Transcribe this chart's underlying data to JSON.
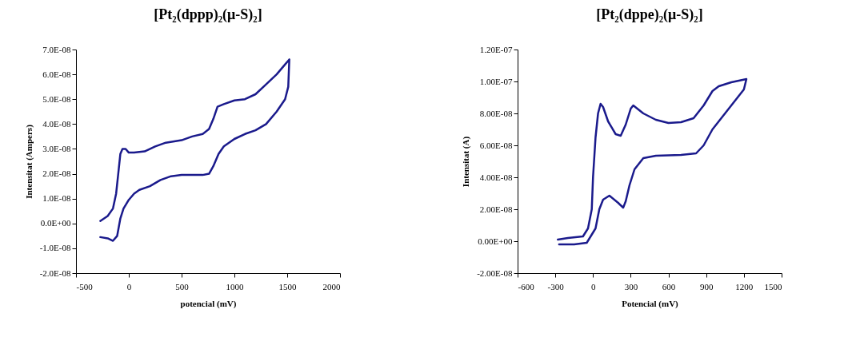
{
  "chart_data": [
    {
      "type": "line",
      "title": "[Pt₂(dppp)₂(μ-S)₂]",
      "xlabel": "potencial (mV)",
      "ylabel": "Intensitat (Ampers)",
      "xlim": [
        -500,
        2000
      ],
      "xticks": [
        -500,
        0,
        500,
        1000,
        1500,
        2000
      ],
      "ylim": [
        -2e-08,
        7e-08
      ],
      "yticks": [
        {
          "value": -2e-08,
          "label": "-2.0E-08"
        },
        {
          "value": -1e-08,
          "label": "-1.0E-08"
        },
        {
          "value": 0,
          "label": "0.0E+00"
        },
        {
          "value": 1e-08,
          "label": "1.0E-08"
        },
        {
          "value": 2e-08,
          "label": "2.0E-08"
        },
        {
          "value": 3e-08,
          "label": "3.0E-08"
        },
        {
          "value": 4e-08,
          "label": "4.0E-08"
        },
        {
          "value": 5e-08,
          "label": "5.0E-08"
        },
        {
          "value": 6e-08,
          "label": "6.0E-08"
        },
        {
          "value": 7e-08,
          "label": "7.0E-08"
        }
      ],
      "series": [
        {
          "color": "#1a1a8c",
          "x": [
            -270,
            -200,
            -150,
            -120,
            -100,
            -80,
            -60,
            -30,
            0,
            50,
            150,
            250,
            350,
            500,
            600,
            700,
            760,
            800,
            840,
            900,
            1000,
            1100,
            1200,
            1300,
            1400,
            1480,
            1520,
            1510,
            1480,
            1400,
            1300,
            1200,
            1100,
            1000,
            900,
            850,
            800,
            760,
            700,
            600,
            500,
            400,
            300,
            200,
            100,
            50,
            0,
            -50,
            -80,
            -110,
            -150,
            -200,
            -270
          ],
          "values": [
            1e-09,
            3e-09,
            6e-09,
            1.2e-08,
            2e-08,
            2.8e-08,
            3e-08,
            3e-08,
            2.85e-08,
            2.85e-08,
            2.9e-08,
            3.1e-08,
            3.25e-08,
            3.35e-08,
            3.5e-08,
            3.6e-08,
            3.8e-08,
            4.2e-08,
            4.7e-08,
            4.8e-08,
            4.95e-08,
            5e-08,
            5.2e-08,
            5.6e-08,
            6e-08,
            6.4e-08,
            6.6e-08,
            5.5e-08,
            5e-08,
            4.5e-08,
            4e-08,
            3.75e-08,
            3.6e-08,
            3.4e-08,
            3.1e-08,
            2.8e-08,
            2.3e-08,
            2e-08,
            1.95e-08,
            1.95e-08,
            1.95e-08,
            1.9e-08,
            1.75e-08,
            1.5e-08,
            1.35e-08,
            1.2e-08,
            9.5e-09,
            6e-09,
            2e-09,
            -5e-09,
            -7e-09,
            -6e-09,
            -5.5e-09
          ]
        }
      ]
    },
    {
      "type": "line",
      "title": "[Pt₂(dppe)₂(μ-S)₂]",
      "xlabel": "Potencial (mV)",
      "ylabel": "Intensitat (A)",
      "xlim": [
        -600,
        1500
      ],
      "xticks": [
        -600,
        -300,
        0,
        300,
        600,
        900,
        1200,
        1500
      ],
      "ylim": [
        -2e-08,
        1.2e-07
      ],
      "yticks": [
        {
          "value": -2e-08,
          "label": "-2.00E-08"
        },
        {
          "value": 0,
          "label": "0.00E+00"
        },
        {
          "value": 2e-08,
          "label": "2.00E-08"
        },
        {
          "value": 4e-08,
          "label": "4.00E-08"
        },
        {
          "value": 6e-08,
          "label": "6.00E-08"
        },
        {
          "value": 8e-08,
          "label": "8.00E-08"
        },
        {
          "value": 1e-07,
          "label": "1.00E-07"
        },
        {
          "value": 1.2e-07,
          "label": "1.20E-07"
        }
      ],
      "series": [
        {
          "color": "#1a1a8c",
          "x": [
            -280,
            -200,
            -80,
            -40,
            -10,
            0,
            20,
            40,
            60,
            80,
            120,
            180,
            220,
            260,
            300,
            320,
            400,
            500,
            600,
            700,
            800,
            880,
            950,
            1000,
            1100,
            1220,
            1200,
            1150,
            1050,
            950,
            880,
            820,
            700,
            500,
            400,
            330,
            290,
            260,
            240,
            200,
            130,
            80,
            50,
            20,
            -50,
            -150,
            -270
          ],
          "values": [
            1e-09,
            2e-09,
            3e-09,
            8e-09,
            2e-08,
            4e-08,
            6.5e-08,
            8e-08,
            8.6e-08,
            8.4e-08,
            7.5e-08,
            6.7e-08,
            6.6e-08,
            7.3e-08,
            8.3e-08,
            8.5e-08,
            8e-08,
            7.6e-08,
            7.4e-08,
            7.45e-08,
            7.7e-08,
            8.5e-08,
            9.4e-08,
            9.7e-08,
            9.95e-08,
            1.015e-07,
            9.5e-08,
            9e-08,
            8e-08,
            7e-08,
            6e-08,
            5.5e-08,
            5.4e-08,
            5.35e-08,
            5.2e-08,
            4.5e-08,
            3.5e-08,
            2.5e-08,
            2.1e-08,
            2.4e-08,
            2.85e-08,
            2.6e-08,
            2e-08,
            8e-09,
            -1e-09,
            -2e-09,
            -2e-09
          ]
        }
      ]
    }
  ]
}
